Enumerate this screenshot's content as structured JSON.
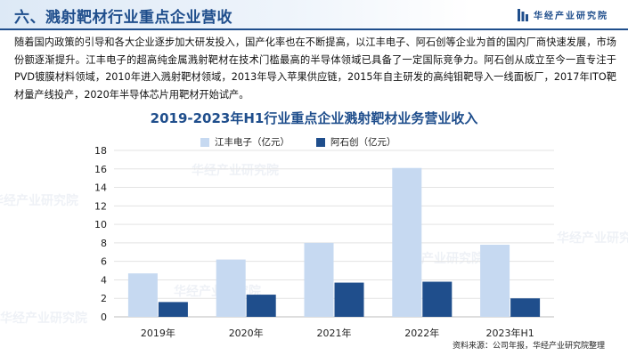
{
  "header": {
    "title": "六、溅射靶材行业重点企业营收",
    "brand": "华经产业研究院"
  },
  "body_text": "随着国内政策的引导和各大企业逐步加大研发投入，国产化率也在不断提高，以江丰电子、阿石创等企业为首的国内厂商快速发展，市场份额逐渐提升。江丰电子的超高纯金属溅射靶材在技术门槛最高的半导体领域已具备了一定国际竞争力。阿石创从成立至今一直专注于PVD镀膜材料领域，2010年进入溅射靶材领域，2013年导入苹果供应链，2015年自主研发的高纯钼靶导入一线面板厂，2017年ITO靶材量产线投产，2020年半导体芯片用靶材开始试产。",
  "watermark": "华经产业研究院",
  "source": "资料来源：公司年报，华经产业研究院整理",
  "colors": {
    "accent": "#1f4e8c",
    "series_light": "#c6d9f1",
    "series_dark": "#1f4e8c"
  },
  "chart_data": {
    "type": "bar",
    "title": "2019-2023年H1行业重点企业溅射靶材业务营业收入",
    "categories": [
      "2019年",
      "2020年",
      "2021年",
      "2022年",
      "2023年H1"
    ],
    "series": [
      {
        "name": "江丰电子（亿元）",
        "values": [
          4.7,
          6.2,
          8.0,
          16.1,
          7.8
        ],
        "color": "#c6d9f1"
      },
      {
        "name": "阿石创（亿元）",
        "values": [
          1.6,
          2.4,
          3.7,
          3.8,
          2.0
        ],
        "color": "#1f4e8c"
      }
    ],
    "ylim": [
      0,
      18
    ],
    "yticks": [
      "0",
      "2",
      "4",
      "6",
      "8",
      "10",
      "12",
      "14",
      "16",
      "18"
    ],
    "grid": true,
    "legend_position": "top"
  }
}
